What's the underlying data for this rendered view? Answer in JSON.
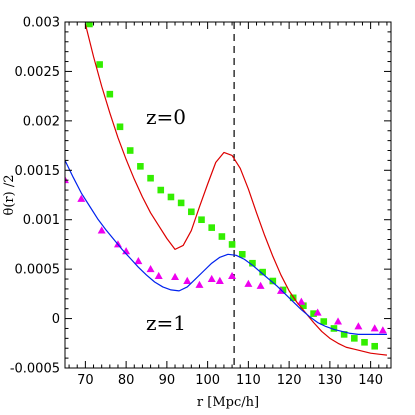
{
  "chart_data": {
    "type": "scatter",
    "title": "",
    "xlabel": "r [Mpc/h]",
    "ylabel": "θ(r) /2",
    "xlim": [
      65,
      145
    ],
    "ylim": [
      -0.0005,
      0.003
    ],
    "x_ticks": [
      70,
      80,
      90,
      100,
      110,
      120,
      130,
      140
    ],
    "x_tick_labels": [
      "70",
      "80",
      "90",
      "100",
      "110",
      "120",
      "130",
      "140"
    ],
    "y_ticks": [
      -0.0005,
      0,
      0.0005,
      0.001,
      0.0015,
      0.002,
      0.0025,
      0.003
    ],
    "y_tick_labels": [
      "-0.0005",
      "0",
      "0.0005",
      "0.001",
      "0.0015",
      "0.002",
      "0.0025",
      "0.003"
    ],
    "grid": false,
    "legend": "none",
    "annotations": [
      "z=0",
      "z=1"
    ],
    "vline": {
      "x": 106.5,
      "style": "dashed",
      "color": "#000000"
    },
    "series": [
      {
        "kind": "scatter",
        "marker": "square",
        "color": "#33ee00",
        "x": [
          71,
          73.5,
          76,
          78.5,
          81,
          83.5,
          86,
          88.5,
          91,
          93.5,
          96,
          98.5,
          101,
          103.5,
          106,
          108.5,
          111,
          113.5,
          116,
          118.5,
          121,
          123.5,
          126,
          128.5,
          131,
          133.5,
          136,
          138.5,
          141
        ],
        "y": [
          0.00298,
          0.00257,
          0.00227,
          0.00194,
          0.0017,
          0.00154,
          0.00142,
          0.0013,
          0.00123,
          0.00117,
          0.00108,
          0.001,
          0.00092,
          0.00083,
          0.00075,
          0.00065,
          0.00056,
          0.00047,
          0.00038,
          0.00029,
          0.00021,
          0.00013,
          5e-05,
          -3e-05,
          -0.0001,
          -0.00016,
          -0.0002,
          -0.00024,
          -0.00028
        ]
      },
      {
        "kind": "scatter",
        "marker": "triangle",
        "color": "#ee00ee",
        "x": [
          65,
          69,
          74,
          78,
          80,
          83,
          86,
          88,
          92,
          95,
          98,
          101,
          103,
          106,
          110,
          113,
          118,
          123,
          127,
          132,
          137,
          141,
          143
        ],
        "y": [
          0.0014,
          0.00121,
          0.00089,
          0.00075,
          0.00068,
          0.00058,
          0.0005,
          0.00043,
          0.00042,
          0.00038,
          0.00034,
          0.0004,
          0.00038,
          0.00043,
          0.00035,
          0.00033,
          0.00028,
          0.00017,
          6e-05,
          -3e-05,
          -8e-05,
          -0.0001,
          -0.00012
        ]
      },
      {
        "kind": "line",
        "color": "#dd0000",
        "x": [
          70,
          72,
          74,
          76,
          78,
          80,
          82,
          84,
          86,
          88,
          90,
          92,
          94,
          96,
          98,
          100,
          102,
          104,
          106,
          108,
          110,
          112,
          114,
          116,
          118,
          120,
          122,
          124,
          126,
          128,
          130,
          132,
          134,
          136,
          138,
          140,
          142,
          144
        ],
        "y": [
          0.00298,
          0.00265,
          0.00235,
          0.00208,
          0.00183,
          0.00161,
          0.00141,
          0.00123,
          0.00107,
          0.00094,
          0.00081,
          0.0007,
          0.00074,
          0.00089,
          0.00113,
          0.00136,
          0.00158,
          0.00168,
          0.00165,
          0.00152,
          0.00131,
          0.00107,
          0.00084,
          0.00063,
          0.00044,
          0.00028,
          0.00016,
          6e-05,
          -4e-05,
          -0.00013,
          -0.0002,
          -0.00025,
          -0.00029,
          -0.00031,
          -0.00033,
          -0.00035,
          -0.00036,
          -0.00037
        ]
      },
      {
        "kind": "line",
        "color": "#0022ee",
        "x": [
          65,
          67,
          69,
          71,
          73,
          75,
          77,
          79,
          81,
          83,
          85,
          87,
          89,
          91,
          93,
          95,
          97,
          99,
          101,
          103,
          105,
          107,
          109,
          111,
          113,
          115,
          117,
          119,
          121,
          123,
          125,
          127,
          129,
          131,
          133,
          135,
          137,
          139,
          141,
          143,
          144
        ],
        "y": [
          0.0016,
          0.00143,
          0.00127,
          0.00114,
          0.00101,
          0.0009,
          0.0008,
          0.0007,
          0.00061,
          0.00052,
          0.00044,
          0.00037,
          0.00032,
          0.00029,
          0.00028,
          0.00032,
          0.0004,
          0.00048,
          0.00056,
          0.00062,
          0.00065,
          0.00064,
          0.0006,
          0.00054,
          0.00047,
          0.0004,
          0.00033,
          0.00025,
          0.00017,
          9e-05,
          2e-05,
          -4e-05,
          -8e-05,
          -0.00011,
          -0.00013,
          -0.00015,
          -0.00016,
          -0.00016,
          -0.00016,
          -0.00016,
          -0.00016
        ]
      }
    ]
  }
}
